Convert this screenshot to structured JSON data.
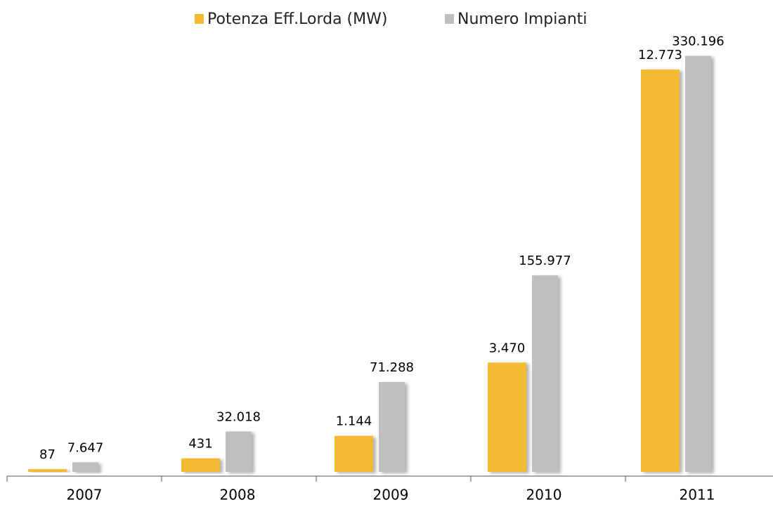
{
  "chart_data": {
    "type": "bar",
    "categories": [
      "2007",
      "2008",
      "2009",
      "2010",
      "2011"
    ],
    "series": [
      {
        "name": "Potenza Eff.Lorda (MW)",
        "color": "#f3bb33",
        "values": [
          87,
          431,
          1144,
          3470,
          12773
        ],
        "value_labels": [
          "87",
          "431",
          "1.144",
          "3.470",
          "12.773"
        ]
      },
      {
        "name": "Numero Impianti",
        "color": "#bfbfbf",
        "axis": "y2",
        "values": [
          7647,
          32018,
          71288,
          155977,
          330196
        ],
        "value_labels": [
          "7.647",
          "32.018",
          "71.288",
          "155.977",
          "330.196"
        ]
      }
    ],
    "ylim": [
      0,
      14000
    ],
    "y2lim": [
      0,
      350000
    ],
    "legend": "top"
  }
}
